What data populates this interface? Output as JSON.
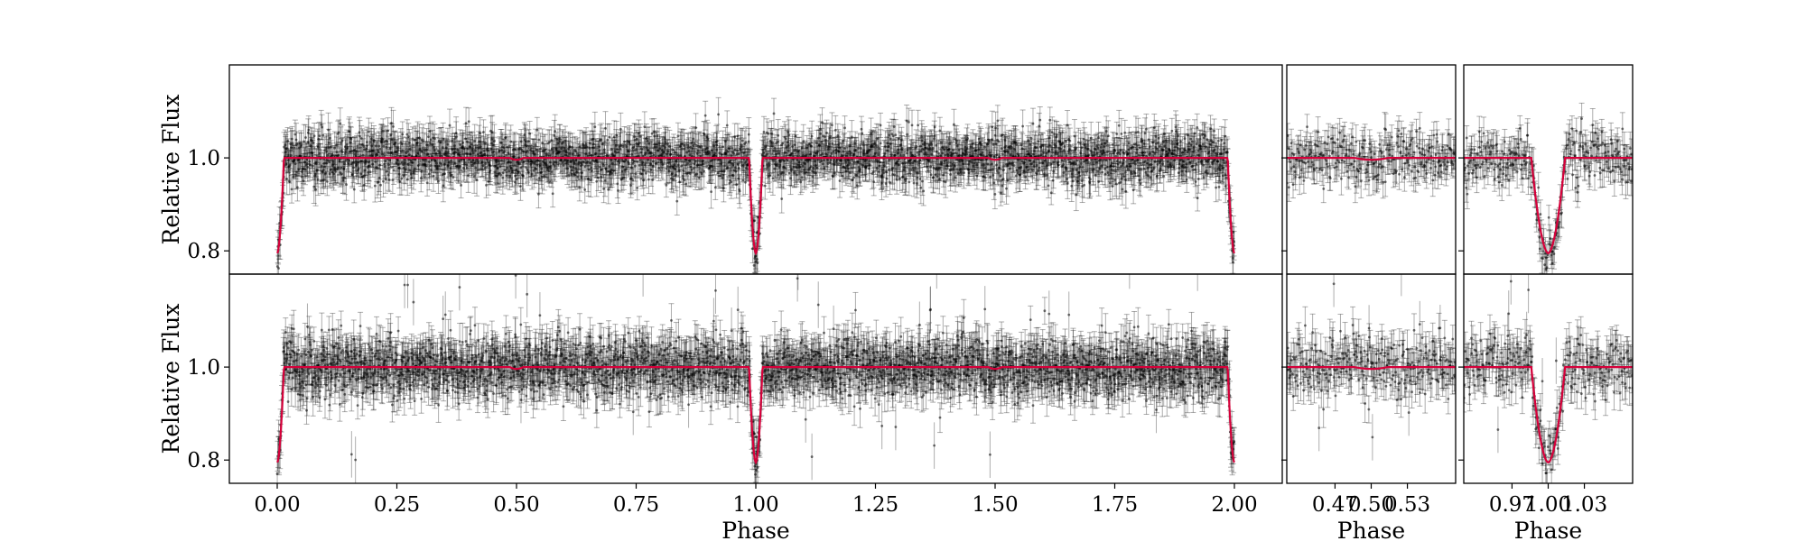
{
  "chart_data": {
    "type": "scatter",
    "description_free": true,
    "colors": {
      "data": "#000000",
      "model": "#d6003a",
      "frame": "#000000"
    },
    "y_axis": {
      "label": "Relative Flux",
      "ylim": [
        0.75,
        1.2
      ],
      "ticks": [
        0.8,
        1.0
      ],
      "tick_labels": [
        "0.8",
        "1.0"
      ]
    },
    "columns": [
      {
        "id": "full",
        "xlim": [
          -0.1,
          2.1
        ],
        "xlabel": "Phase",
        "ticks": [
          0.0,
          0.25,
          0.5,
          0.75,
          1.0,
          1.25,
          1.5,
          1.75,
          2.0
        ],
        "tick_labels": [
          "0.00",
          "0.25",
          "0.50",
          "0.75",
          "1.00",
          "1.25",
          "1.50",
          "1.75",
          "2.00"
        ]
      },
      {
        "id": "secondary",
        "xlim": [
          0.43,
          0.57
        ],
        "xlabel": "Phase",
        "ticks": [
          0.47,
          0.5,
          0.53
        ],
        "tick_labels": [
          "0.47",
          "0.50",
          "0.53"
        ]
      },
      {
        "id": "primary",
        "xlim": [
          0.93,
          1.07
        ],
        "xlabel": "Phase",
        "ticks": [
          0.97,
          1.0,
          1.03
        ],
        "tick_labels": [
          "0.97",
          "1.00",
          "1.03"
        ]
      }
    ],
    "rows": [
      {
        "id": "top",
        "scatter": 0.028,
        "outliers": 0
      },
      {
        "id": "bottom",
        "scatter": 0.032,
        "outliers": 40
      }
    ],
    "model": {
      "baseline": 1.0,
      "primary_eclipse": {
        "center": 1.0,
        "depth": 0.205,
        "half_width": 0.014
      },
      "secondary_eclipse": {
        "center": 0.5,
        "depth": 0.004,
        "half_width": 0.014
      }
    }
  }
}
